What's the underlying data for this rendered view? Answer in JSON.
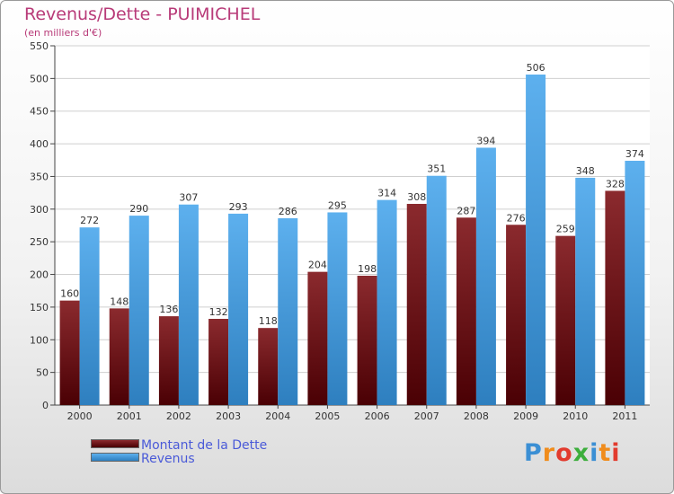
{
  "header": {
    "title": "Revenus/Dette - PUIMICHEL",
    "subtitle": "(en milliers d'€)"
  },
  "chart_data": {
    "type": "bar",
    "categories": [
      "2000",
      "2001",
      "2002",
      "2003",
      "2004",
      "2005",
      "2006",
      "2007",
      "2008",
      "2009",
      "2010",
      "2011"
    ],
    "series": [
      {
        "name": "Montant de la Dette",
        "color": "#7a1a1e",
        "values": [
          160,
          148,
          136,
          132,
          118,
          204,
          198,
          308,
          287,
          276,
          259,
          328
        ]
      },
      {
        "name": "Revenus",
        "color": "#4aa3e6",
        "values": [
          272,
          290,
          307,
          293,
          286,
          295,
          314,
          351,
          394,
          506,
          348,
          374
        ]
      }
    ],
    "ylim": [
      0,
      550
    ],
    "yticks": [
      0,
      50,
      100,
      150,
      200,
      250,
      300,
      350,
      400,
      450,
      500,
      550
    ],
    "grid": true,
    "legend": "bottom-left"
  },
  "legend": {
    "items": [
      {
        "label": "Montant de la Dette",
        "color": "#6b0f14"
      },
      {
        "label": "Revenus",
        "color": "#4aa3e6"
      }
    ]
  },
  "logo": {
    "text": "Proxiti",
    "letter_colors": [
      "#3b8fd4",
      "#f08c1c",
      "#e23b2e",
      "#3cae3c",
      "#3b8fd4",
      "#f08c1c",
      "#e23b2e"
    ]
  }
}
